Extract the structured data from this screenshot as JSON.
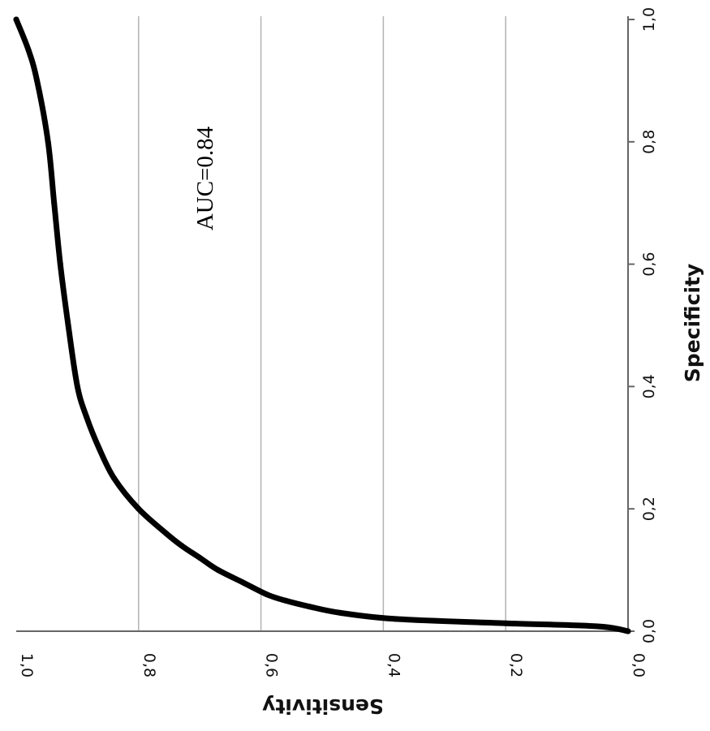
{
  "chart_data": {
    "type": "line",
    "xlabel": "Specificity",
    "ylabel": "Sensitivity",
    "xlim": [
      0,
      1
    ],
    "ylim": [
      0,
      1
    ],
    "x_ticks": [
      "0,0",
      "0,2",
      "0,4",
      "0,6",
      "0,8",
      "1,0"
    ],
    "y_ticks": [
      "0,0",
      "0,2",
      "0,4",
      "0,6",
      "0,8",
      "1,0"
    ],
    "grid": "horizontal",
    "annotation": "AUC=0.84",
    "series": [
      {
        "color": "#000000",
        "x": [
          0.0,
          0.008,
          0.013,
          0.02,
          0.03,
          0.04,
          0.05,
          0.06,
          0.08,
          0.1,
          0.12,
          0.14,
          0.16,
          0.2,
          0.25,
          0.3,
          0.35,
          0.4,
          0.5,
          0.6,
          0.7,
          0.8,
          0.9,
          0.95,
          1.0
        ],
        "y": [
          0.0,
          0.05,
          0.2,
          0.38,
          0.47,
          0.52,
          0.56,
          0.59,
          0.63,
          0.67,
          0.7,
          0.73,
          0.755,
          0.8,
          0.84,
          0.865,
          0.885,
          0.9,
          0.915,
          0.928,
          0.938,
          0.948,
          0.966,
          0.98,
          1.0
        ]
      }
    ]
  }
}
